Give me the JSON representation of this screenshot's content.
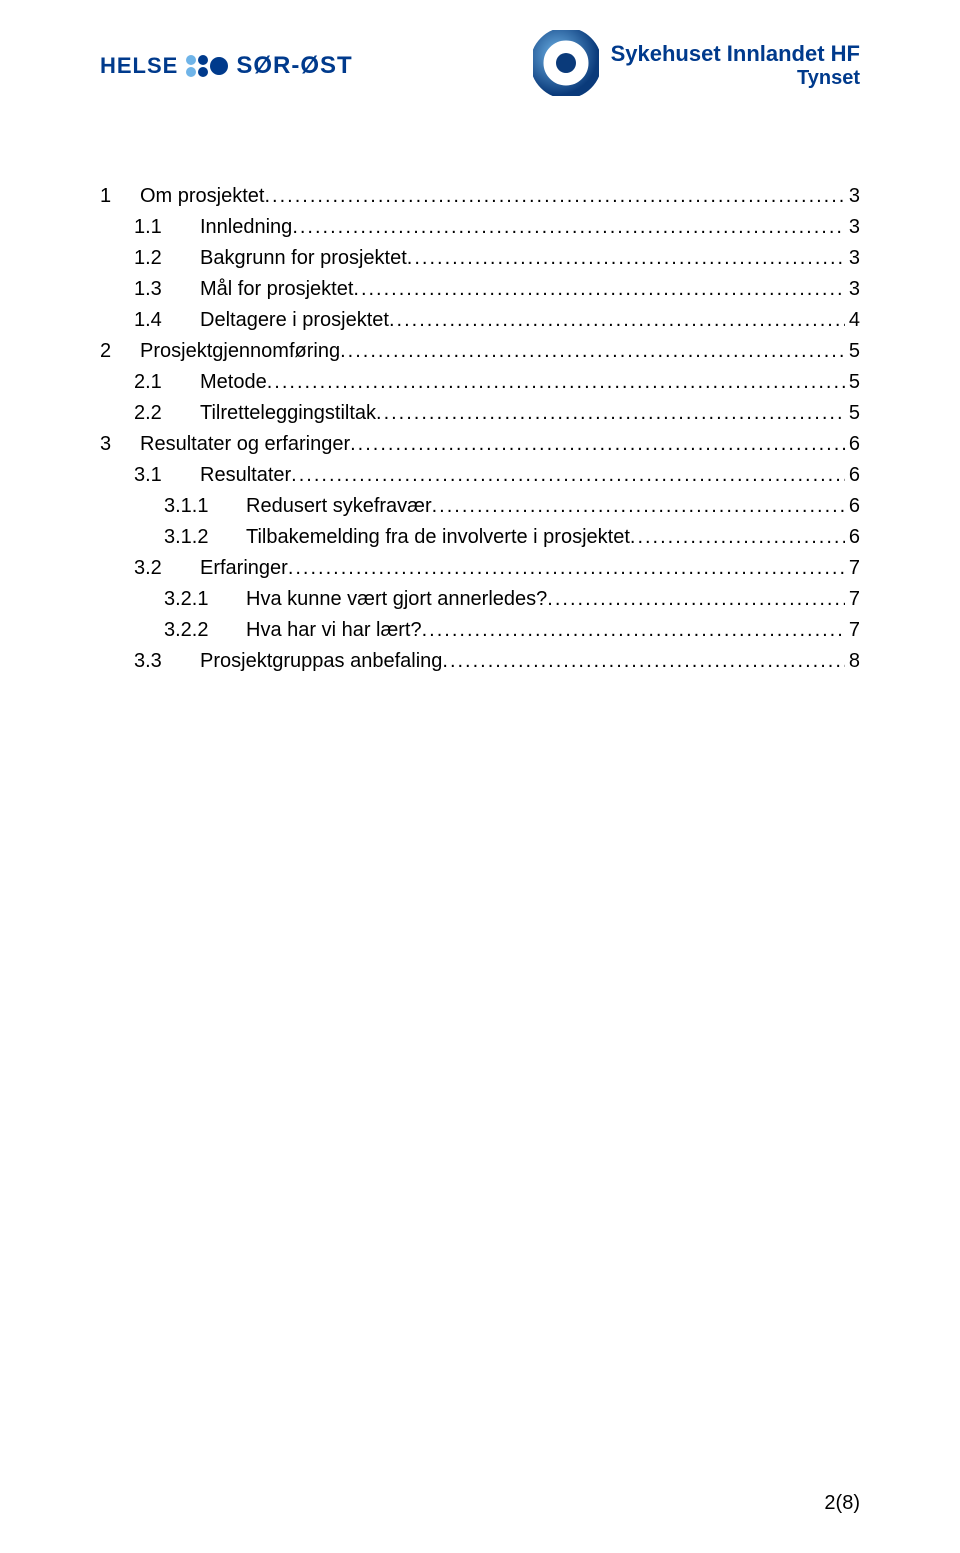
{
  "header": {
    "left": {
      "helse": "HELSE",
      "sor_ost": "SØR-ØST"
    },
    "right": {
      "line1": "Sykehuset Innlandet HF",
      "line2": "Tynset"
    }
  },
  "colors": {
    "brand_blue": "#003a8c",
    "light_blue": "#6fb4e8"
  },
  "toc": [
    {
      "indent": 0,
      "num": "1",
      "title": "Om prosjektet",
      "page": "3"
    },
    {
      "indent": 1,
      "num": "1.1",
      "title": "Innledning",
      "page": "3"
    },
    {
      "indent": 1,
      "num": "1.2",
      "title": "Bakgrunn for prosjektet",
      "page": "3"
    },
    {
      "indent": 1,
      "num": "1.3",
      "title": "Mål for prosjektet",
      "page": "3"
    },
    {
      "indent": 1,
      "num": "1.4",
      "title": "Deltagere i prosjektet",
      "page": "4"
    },
    {
      "indent": 0,
      "num": "2",
      "title": "Prosjektgjennomføring",
      "page": "5"
    },
    {
      "indent": 1,
      "num": "2.1",
      "title": "Metode",
      "page": "5"
    },
    {
      "indent": 1,
      "num": "2.2",
      "title": "Tilretteleggingstiltak",
      "page": "5"
    },
    {
      "indent": 0,
      "num": "3",
      "title": "Resultater og erfaringer",
      "page": "6"
    },
    {
      "indent": 1,
      "num": "3.1",
      "title": "Resultater",
      "page": "6"
    },
    {
      "indent": 2,
      "num": "3.1.1",
      "title": "Redusert sykefravær",
      "page": "6"
    },
    {
      "indent": 2,
      "num": "3.1.2",
      "title": "Tilbakemelding fra de involverte i prosjektet",
      "page": "6"
    },
    {
      "indent": 1,
      "num": "3.2",
      "title": "Erfaringer",
      "page": "7"
    },
    {
      "indent": 2,
      "num": "3.2.1",
      "title": "Hva kunne vært gjort annerledes?",
      "page": "7"
    },
    {
      "indent": 2,
      "num": "3.2.2",
      "title": "Hva har vi har lært?",
      "page": "7"
    },
    {
      "indent": 1,
      "num": "3.3",
      "title": "Prosjektgruppas anbefaling",
      "page": "8"
    }
  ],
  "footer": {
    "page_indicator": "2(8)"
  }
}
